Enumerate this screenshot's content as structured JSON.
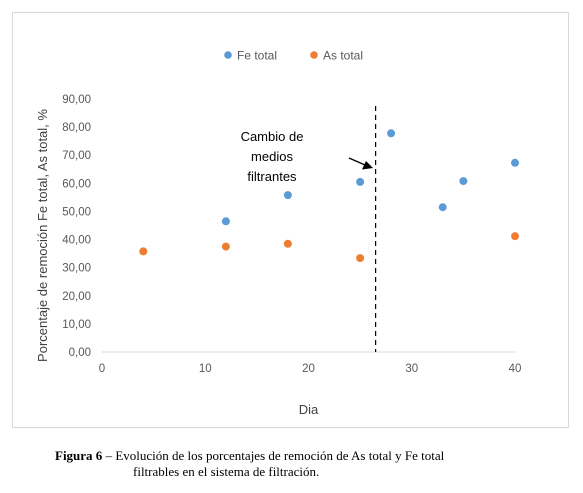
{
  "chart_data": {
    "type": "scatter",
    "title": "",
    "xlabel": "Dia",
    "ylabel": "Porcentaje de remoción Fe total, As total, %",
    "xlim": [
      0,
      40
    ],
    "ylim": [
      0,
      90
    ],
    "x_ticks": [
      "0",
      "10",
      "20",
      "30",
      "40"
    ],
    "y_ticks": [
      "0,00",
      "10,00",
      "20,00",
      "30,00",
      "40,00",
      "50,00",
      "60,00",
      "70,00",
      "80,00",
      "90,00"
    ],
    "legend_position": "top",
    "series": [
      {
        "name": "Fe total",
        "color": "#5b9bd5",
        "points": [
          {
            "x": 12,
            "y": 46.5
          },
          {
            "x": 18,
            "y": 55.8
          },
          {
            "x": 25,
            "y": 60.5
          },
          {
            "x": 28,
            "y": 77.8
          },
          {
            "x": 33,
            "y": 51.5
          },
          {
            "x": 35,
            "y": 60.8
          },
          {
            "x": 40,
            "y": 67.3
          }
        ]
      },
      {
        "name": "As total",
        "color": "#ed7d31",
        "points": [
          {
            "x": 4,
            "y": 35.8
          },
          {
            "x": 12,
            "y": 37.5
          },
          {
            "x": 18,
            "y": 38.5
          },
          {
            "x": 25,
            "y": 33.4
          },
          {
            "x": 40,
            "y": 41.2
          }
        ]
      }
    ],
    "reference_line": {
      "x": 26.5,
      "style": "dashed",
      "color": "#000000"
    },
    "annotation": {
      "lines": [
        "Cambio de",
        "medios",
        "filtrantes"
      ]
    }
  },
  "caption": {
    "label": "Figura 6",
    "line1": " – Evolución de los porcentajes de remoción de As total y Fe total",
    "line2": "filtrables en el sistema de filtración."
  }
}
